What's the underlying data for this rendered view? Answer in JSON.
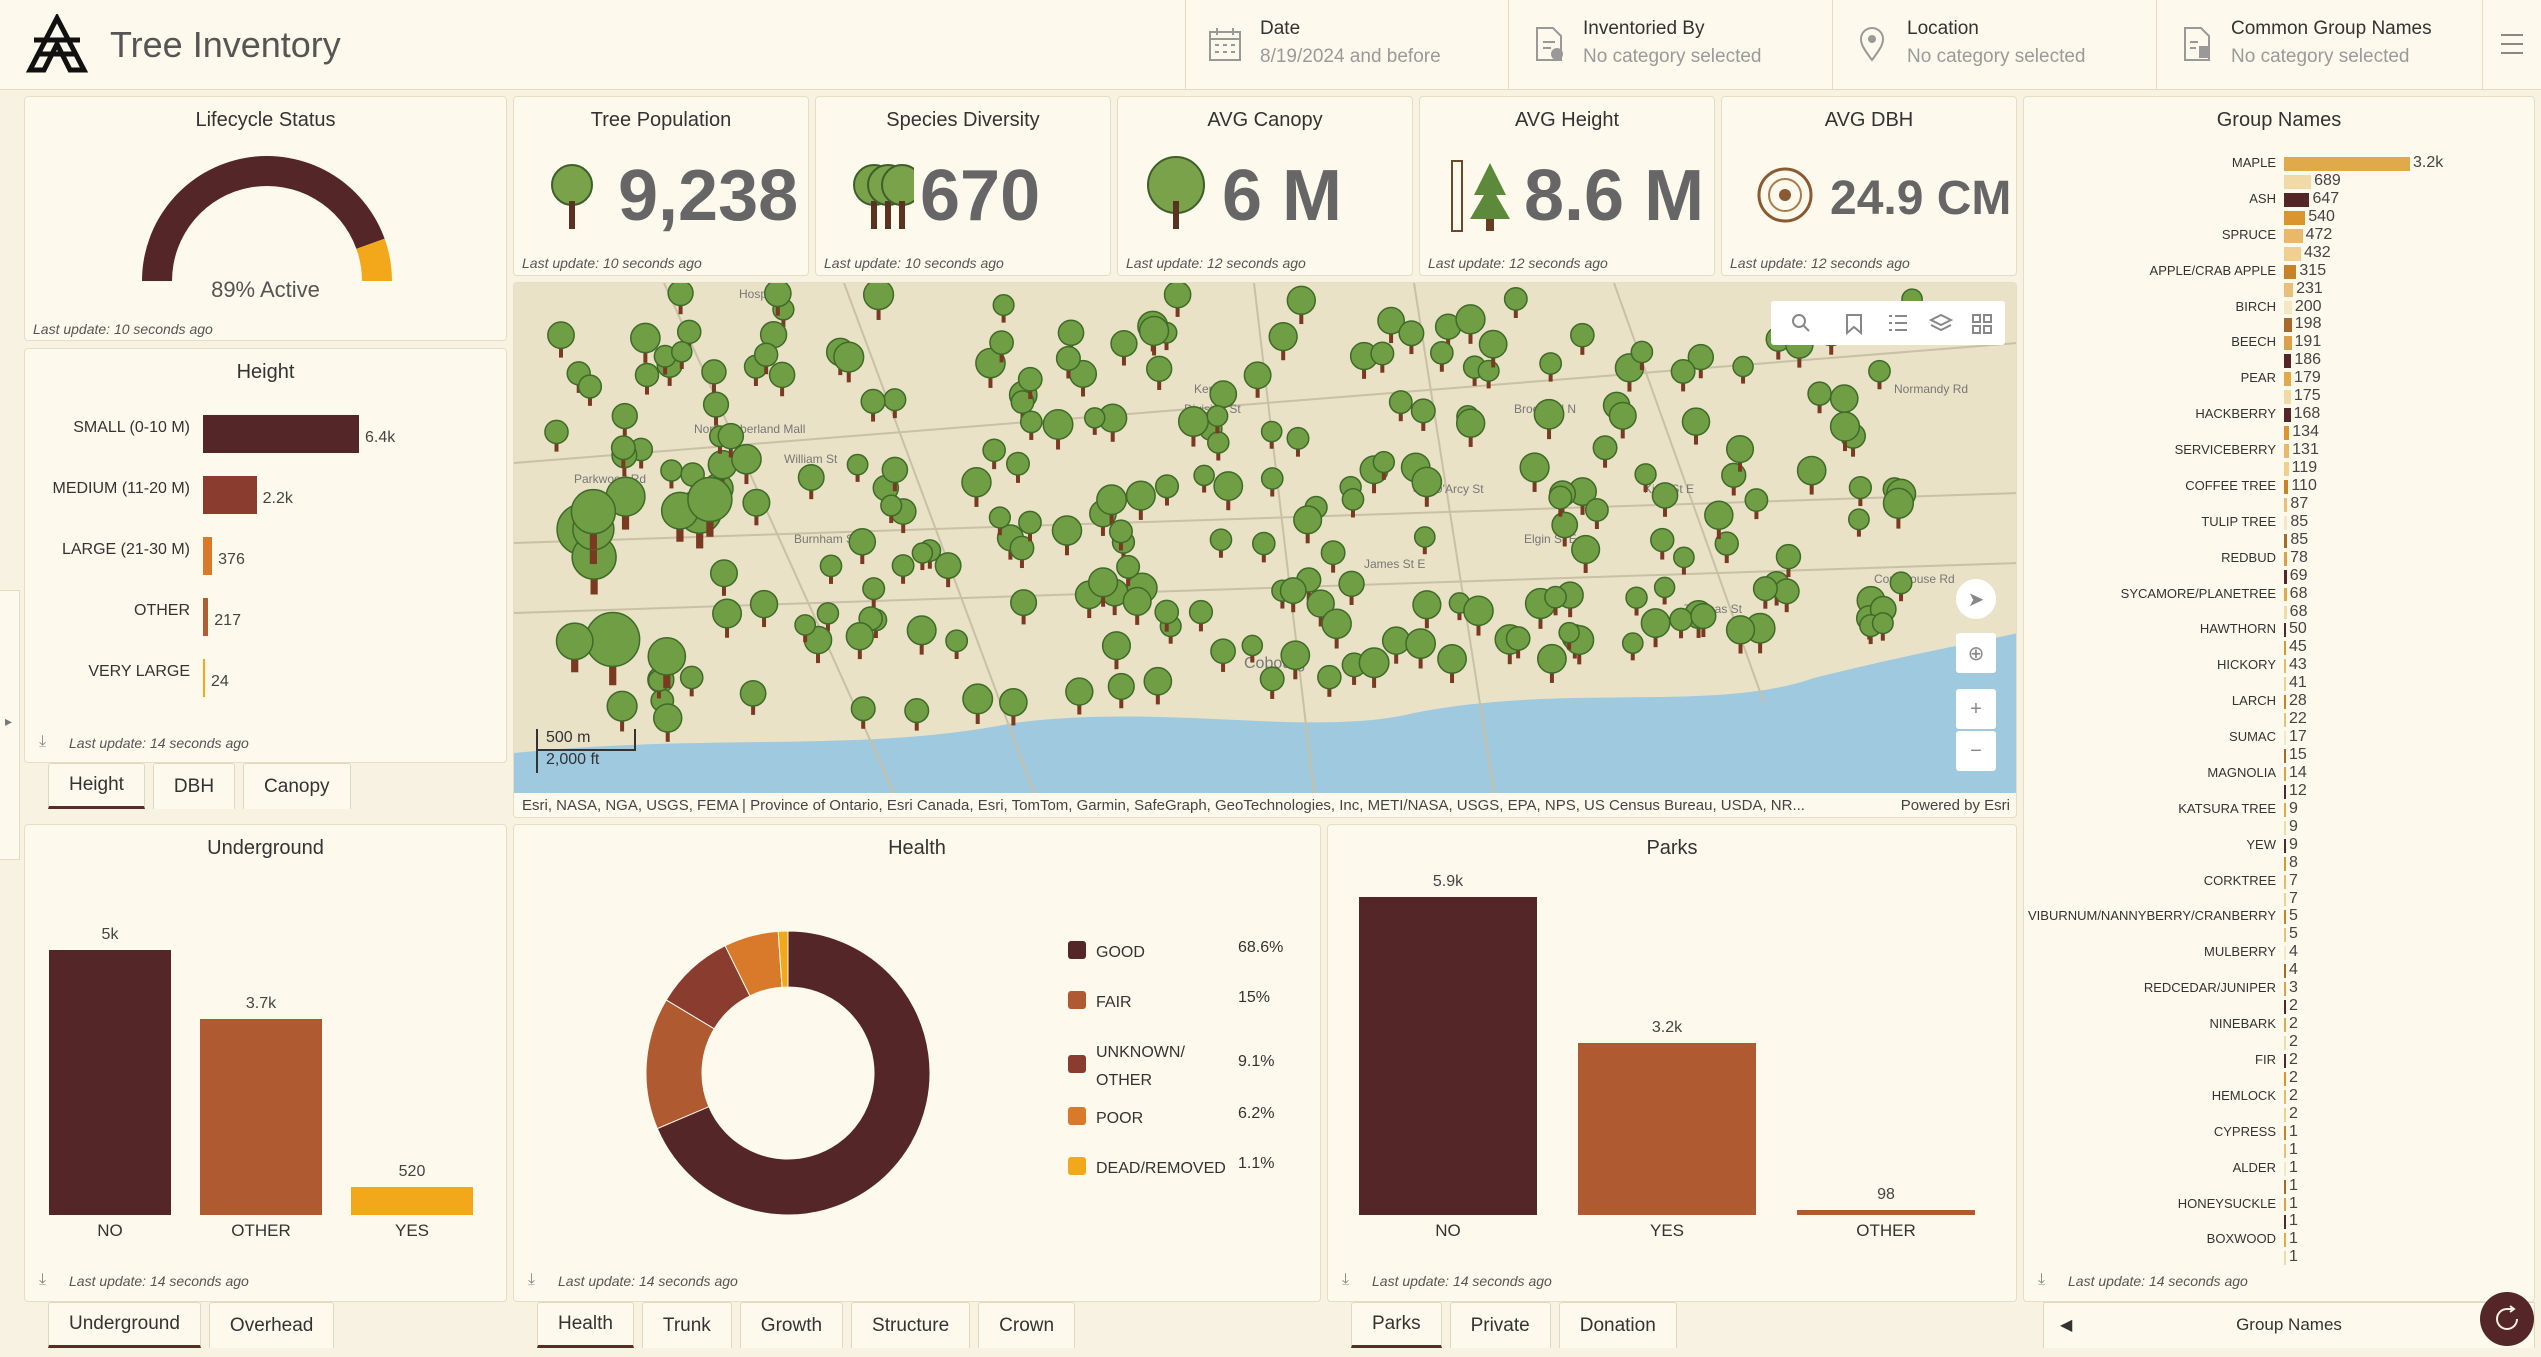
{
  "app": {
    "title": "Tree Inventory"
  },
  "filters": [
    {
      "title": "Date",
      "value": "8/19/2024 and before",
      "icon": "calendar-icon"
    },
    {
      "title": "Inventoried By",
      "value": "No category selected",
      "icon": "document-plus-icon"
    },
    {
      "title": "Location",
      "value": "No category selected",
      "icon": "location-pin-icon"
    },
    {
      "title": "Common Group Names",
      "value": "No category selected",
      "icon": "document-list-icon"
    }
  ],
  "lifecycle": {
    "title": "Lifecycle Status",
    "percent": 89,
    "label": "89% Active",
    "update": "Last update: 10 seconds ago",
    "colors": {
      "active": "#542627",
      "inactive": "#f3a81c"
    }
  },
  "kpis": [
    {
      "title": "Tree Population",
      "value": "9,238",
      "update": "Last update: 10 seconds ago",
      "icon": "tree-icon"
    },
    {
      "title": "Species Diversity",
      "value": "670",
      "update": "Last update: 10 seconds ago",
      "icon": "forest-icon"
    },
    {
      "title": "AVG Canopy",
      "value": "6 M",
      "update": "Last update: 12 seconds ago",
      "icon": "canopy-icon"
    },
    {
      "title": "AVG Height",
      "value": "8.6 M",
      "update": "Last update: 12 seconds ago",
      "icon": "ruler-tree-icon"
    },
    {
      "title": "AVG DBH",
      "value": "24.9 CM",
      "update": "Last update: 12 seconds ago",
      "icon": "tree-rings-icon"
    }
  ],
  "height": {
    "title": "Height",
    "update": "Last update: 14 seconds ago",
    "tabs": [
      "Height",
      "DBH",
      "Canopy"
    ],
    "chart_data": {
      "type": "bar",
      "orientation": "horizontal",
      "categories": [
        "SMALL (0-10 M)",
        "MEDIUM (11-20 M)",
        "LARGE (21-30 M)",
        "OTHER",
        "VERY LARGE"
      ],
      "values": [
        6400,
        2200,
        376,
        217,
        24
      ],
      "labels": [
        "6.4k",
        "2.2k",
        "376",
        "217",
        "24"
      ],
      "colors": [
        "#542627",
        "#8a3d2e",
        "#d97a2a",
        "#b05e33",
        "#f3a81c"
      ]
    }
  },
  "map": {
    "attribution": "Esri, NASA, NGA, USGS, FEMA | Province of Ontario, Esri Canada, Esri, TomTom, Garmin, SafeGraph, GeoTechnologies, Inc, METI/NASA, USGS, EPA, NPS, US Census Bureau, USDA, NR...",
    "powered": "Powered by Esri",
    "scale_m": "500 m",
    "scale_ft": "2,000 ft",
    "labels": [
      "Hospital",
      "Northumberland Mall",
      "Cobourg",
      "Brook Rd N",
      "Kerr St",
      "King St E",
      "Division St",
      "Burnham St",
      "William St",
      "D'Arcy St",
      "Elgin St E",
      "James St E",
      "Thomas St",
      "Normandy Rd",
      "Courthouse Rd",
      "Parkwood Rd"
    ]
  },
  "underground": {
    "title": "Underground",
    "update": "Last update: 14 seconds ago",
    "tabs": [
      "Underground",
      "Overhead"
    ],
    "chart_data": {
      "type": "bar",
      "categories": [
        "NO",
        "OTHER",
        "YES"
      ],
      "values": [
        5000,
        3700,
        520
      ],
      "labels": [
        "5k",
        "3.7k",
        "520"
      ],
      "colors": [
        "#542627",
        "#b05a32",
        "#f3a81c"
      ]
    }
  },
  "health": {
    "title": "Health",
    "update": "Last update: 14 seconds ago",
    "tabs": [
      "Health",
      "Trunk",
      "Growth",
      "Structure",
      "Crown"
    ],
    "chart_data": {
      "type": "pie",
      "donut": true,
      "categories": [
        "GOOD",
        "FAIR",
        "UNKNOWN/ OTHER",
        "POOR",
        "DEAD/REMOVED"
      ],
      "values": [
        68.6,
        15,
        9.1,
        6.2,
        1.1
      ],
      "labels": [
        "68.6%",
        "15%",
        "9.1%",
        "6.2%",
        "1.1%"
      ],
      "colors": [
        "#542627",
        "#b05a32",
        "#8a3d2e",
        "#d97a2a",
        "#f3a81c"
      ]
    }
  },
  "parks": {
    "title": "Parks",
    "update": "Last update: 14 seconds ago",
    "tabs": [
      "Parks",
      "Private",
      "Donation"
    ],
    "chart_data": {
      "type": "bar",
      "categories": [
        "NO",
        "YES",
        "OTHER"
      ],
      "values": [
        5900,
        3200,
        98
      ],
      "labels": [
        "5.9k",
        "3.2k",
        "98"
      ],
      "colors": [
        "#542627",
        "#b05a32",
        "#b05a32"
      ]
    }
  },
  "groups": {
    "title": "Group Names",
    "update": "Last update: 14 seconds ago",
    "footer": "Group Names",
    "chart_data": {
      "type": "bar",
      "orientation": "horizontal",
      "categories": [
        "MAPLE",
        "",
        "ASH",
        "",
        "SPRUCE",
        "",
        "APPLE/CRAB APPLE",
        "",
        "BIRCH",
        "",
        "BEECH",
        "",
        "PEAR",
        "",
        "HACKBERRY",
        "",
        "SERVICEBERRY",
        "",
        "COFFEE TREE",
        "",
        "TULIP TREE",
        "",
        "REDBUD",
        "",
        "SYCAMORE/PLANETREE",
        "",
        "HAWTHORN",
        "",
        "HICKORY",
        "",
        "LARCH",
        "",
        "SUMAC",
        "",
        "MAGNOLIA",
        "",
        "KATSURA TREE",
        "",
        "YEW",
        "",
        "CORKTREE",
        "",
        "VIBURNUM/NANNYBERRY/CRANBERRY",
        "",
        "MULBERRY",
        "",
        "REDCEDAR/JUNIPER",
        "",
        "NINEBARK",
        "",
        "FIR",
        "",
        "HEMLOCK",
        "",
        "CYPRESS",
        "",
        "ALDER",
        "",
        "HONEYSUCKLE",
        "",
        "BOXWOOD",
        ""
      ],
      "values": [
        3200,
        689,
        647,
        540,
        472,
        432,
        315,
        231,
        200,
        198,
        191,
        186,
        179,
        175,
        168,
        134,
        131,
        119,
        110,
        87,
        85,
        85,
        78,
        69,
        68,
        68,
        50,
        45,
        43,
        41,
        28,
        22,
        17,
        15,
        14,
        12,
        9,
        9,
        9,
        8,
        7,
        7,
        5,
        5,
        4,
        4,
        3,
        2,
        2,
        2,
        2,
        2,
        2,
        2,
        1,
        1,
        1,
        1,
        1,
        1,
        1,
        1
      ],
      "labels": [
        "3.2k",
        "689",
        "647",
        "540",
        "472",
        "432",
        "315",
        "231",
        "200",
        "198",
        "191",
        "186",
        "179",
        "175",
        "168",
        "134",
        "131",
        "119",
        "110",
        "87",
        "85",
        "85",
        "78",
        "69",
        "68",
        "68",
        "50",
        "45",
        "43",
        "41",
        "28",
        "22",
        "17",
        "15",
        "14",
        "12",
        "9",
        "9",
        "9",
        "8",
        "7",
        "7",
        "5",
        "5",
        "4",
        "4",
        "3",
        "2",
        "2",
        "2",
        "2",
        "2",
        "2",
        "2",
        "1",
        "1",
        "1",
        "1",
        "1",
        "1",
        "1",
        "1"
      ],
      "palette": [
        "#e0a94a",
        "#f2d9a8",
        "#542627",
        "#d9952e",
        "#e8b969",
        "#f0cf90",
        "#c8822a",
        "#e8c07a",
        "#f5e6c5",
        "#a86a2a",
        "#d9a24a",
        "#542627"
      ]
    }
  }
}
